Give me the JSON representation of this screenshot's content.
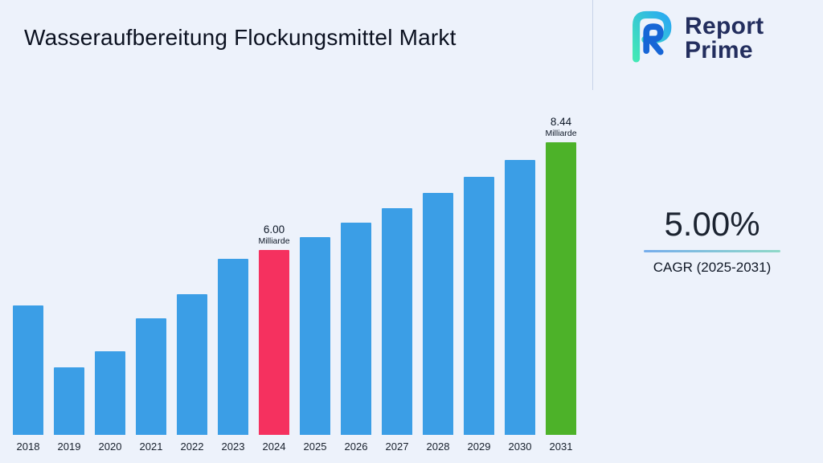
{
  "page": {
    "background": "#edf2fb"
  },
  "header": {
    "title": "Wasseraufbereitung Flockungsmittel Markt"
  },
  "brand": {
    "line1": "Report",
    "line2": "Prime",
    "navy": "#232e5e",
    "gradient_start": "#43e8b6",
    "gradient_end": "#2aa9f2",
    "inner_blue": "#1766d6"
  },
  "stats": {
    "cagr_value": "5.00%",
    "cagr_label": "CAGR (2025-2031)"
  },
  "chart_data": {
    "type": "bar",
    "title": "Wasseraufbereitung Flockungsmittel Markt",
    "unit": "Milliarde",
    "categories": [
      "2018",
      "2019",
      "2020",
      "2021",
      "2022",
      "2023",
      "2024",
      "2025",
      "2026",
      "2027",
      "2028",
      "2029",
      "2030",
      "2031"
    ],
    "values": [
      4.75,
      3.35,
      3.7,
      4.45,
      5.0,
      5.8,
      6.0,
      6.3,
      6.62,
      6.95,
      7.29,
      7.66,
      8.04,
      8.44
    ],
    "ylim": [
      0,
      9
    ],
    "grid": false,
    "legend": "none",
    "colors": {
      "bar_default": "#3b9ee6"
    },
    "labeled_bars": [
      {
        "year": "2024",
        "value_label": "6.00",
        "unit_label": "Milliarde",
        "color": "#f5315f"
      },
      {
        "year": "2031",
        "value_label": "8.44",
        "unit_label": "Milliarde",
        "color": "#4db229"
      }
    ]
  }
}
